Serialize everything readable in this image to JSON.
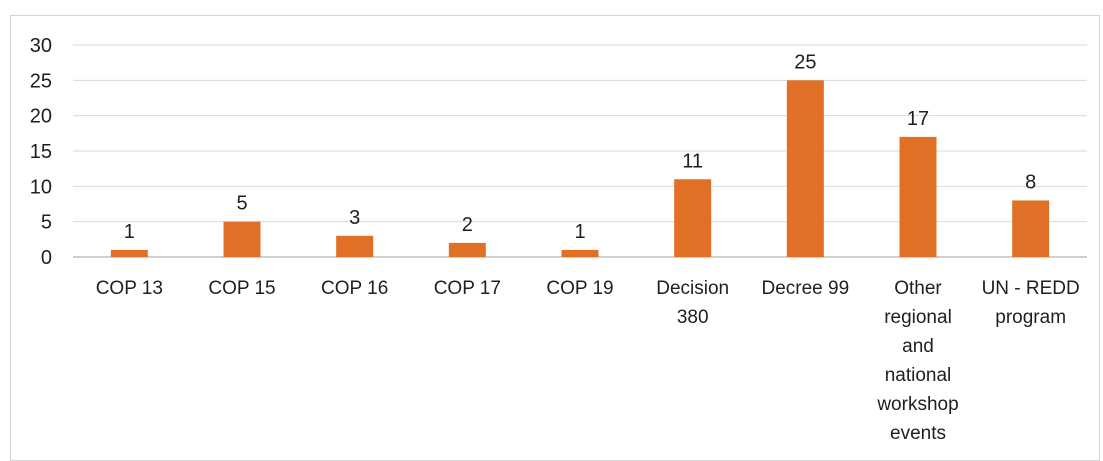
{
  "chart_data": {
    "type": "bar",
    "categories": [
      [
        "COP 13"
      ],
      [
        "COP 15"
      ],
      [
        "COP 16"
      ],
      [
        "COP 17"
      ],
      [
        "COP 19"
      ],
      [
        "Decision",
        "380"
      ],
      [
        "Decree 99"
      ],
      [
        "Other",
        "regional",
        "and",
        "national",
        "workshop",
        "events"
      ],
      [
        "UN - REDD",
        "program"
      ]
    ],
    "values": [
      1,
      5,
      3,
      2,
      1,
      11,
      25,
      17,
      8
    ],
    "ylim": [
      0,
      30
    ],
    "yticks": [
      0,
      5,
      10,
      15,
      20,
      25,
      30
    ],
    "grid": true,
    "bar_color": "#E07026",
    "grid_color": "#d9d9d9",
    "axis_color": "#bfbfbf"
  }
}
